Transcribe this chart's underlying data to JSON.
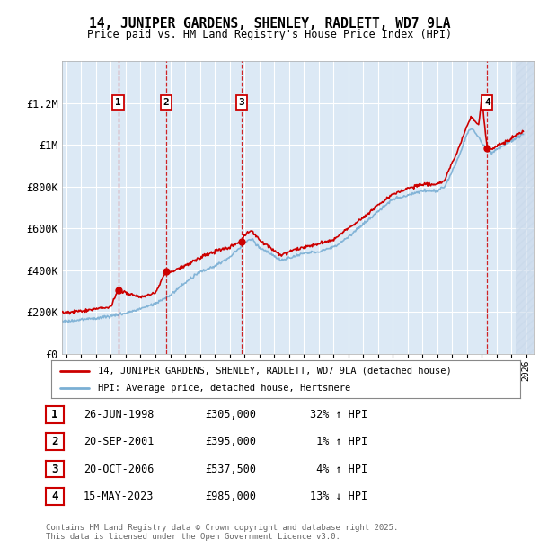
{
  "title": "14, JUNIPER GARDENS, SHENLEY, RADLETT, WD7 9LA",
  "subtitle": "Price paid vs. HM Land Registry's House Price Index (HPI)",
  "background_color": "#ffffff",
  "plot_bg_color": "#dce9f5",
  "grid_color": "#ffffff",
  "sale_color": "#cc0000",
  "hpi_color": "#7aafd4",
  "ylim": [
    0,
    1400000
  ],
  "yticks": [
    0,
    200000,
    400000,
    600000,
    800000,
    1000000,
    1200000
  ],
  "ytick_labels": [
    "£0",
    "£200K",
    "£400K",
    "£600K",
    "£800K",
    "£1M",
    "£1.2M"
  ],
  "xlim_start": 1994.7,
  "xlim_end": 2026.5,
  "future_cutoff": 2025.3,
  "sale_transactions": [
    {
      "label": "1",
      "year": 1998.49,
      "price": 305000,
      "date": "26-JUN-1998",
      "pct": "32%",
      "dir": "↑"
    },
    {
      "label": "2",
      "year": 2001.72,
      "price": 395000,
      "date": "20-SEP-2001",
      "pct": "1%",
      "dir": "↑"
    },
    {
      "label": "3",
      "year": 2006.8,
      "price": 537500,
      "date": "20-OCT-2006",
      "pct": "4%",
      "dir": "↑"
    },
    {
      "label": "4",
      "year": 2023.37,
      "price": 985000,
      "date": "15-MAY-2023",
      "pct": "13%",
      "dir": "↓"
    }
  ],
  "footnote": "Contains HM Land Registry data © Crown copyright and database right 2025.\nThis data is licensed under the Open Government Licence v3.0.",
  "legend_sale_label": "14, JUNIPER GARDENS, SHENLEY, RADLETT, WD7 9LA (detached house)",
  "legend_hpi_label": "HPI: Average price, detached house, Hertsmere"
}
